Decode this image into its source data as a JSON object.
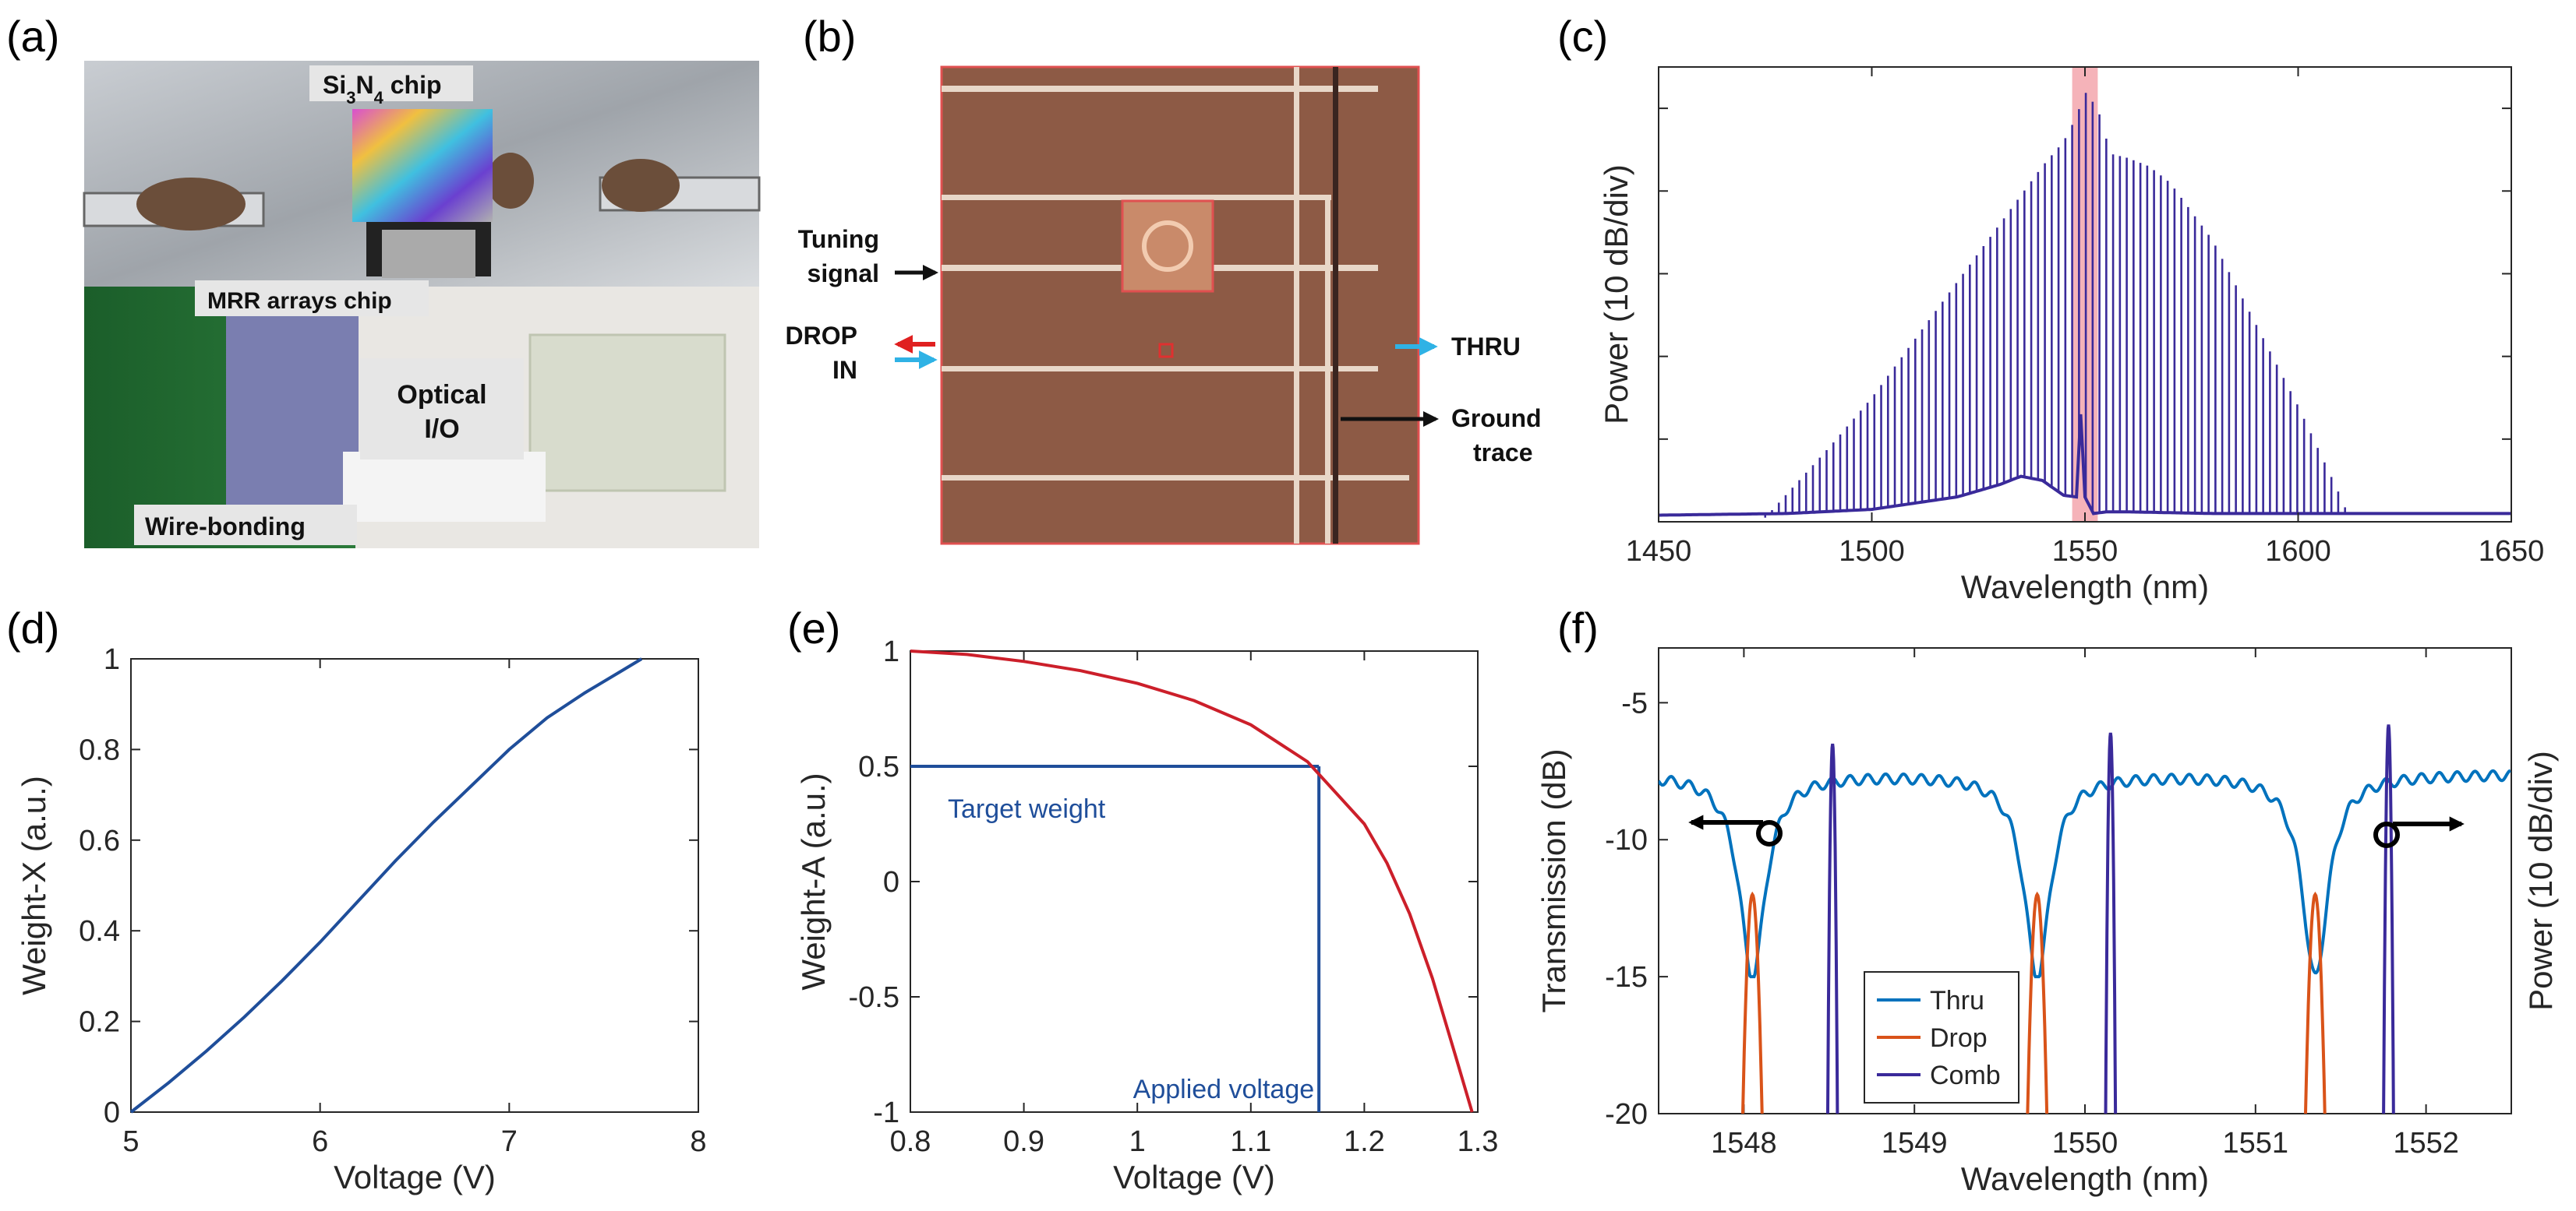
{
  "panels": {
    "a": "(a)",
    "b": "(b)",
    "c": "(c)",
    "d": "(d)",
    "e": "(e)",
    "f": "(f)"
  },
  "photo_a": {
    "label_chip": "Si3N4 chip",
    "label_chip_main": "Si",
    "label_chip_sub1": "3",
    "label_chip_mid": "N",
    "label_chip_sub2": "4",
    "label_chip_end": " chip",
    "label_mrr": "MRR arrays chip",
    "label_optical_line1": "Optical",
    "label_optical_line2": "I/O",
    "label_wire": "Wire-bonding"
  },
  "micro_b": {
    "tuning_line1": "Tuning",
    "tuning_line2": "signal",
    "drop": "DROP",
    "in": "IN",
    "thru": "THRU",
    "ground_line1": "Ground",
    "ground_line2": "trace"
  },
  "colors": {
    "comb_purple": "#3A2A9A",
    "thru_blue": "#0072BD",
    "drop_orange": "#D95319",
    "weight_blue": "#1F4E9A",
    "weight_red": "#CC1F2A",
    "highlight_pink": "#F2A0A8"
  },
  "chart_data": [
    {
      "id": "c",
      "type": "line",
      "title": "",
      "xlabel": "Wavelength (nm)",
      "ylabel": "Power (10 dB/div)",
      "xlim": [
        1450,
        1650
      ],
      "xticks": [
        1450,
        1500,
        1550,
        1600,
        1650
      ],
      "xtick_labels": [
        "1450",
        "1500",
        "1550",
        "1600",
        "1650"
      ],
      "ylim": [
        0,
        5.5
      ],
      "yticks": [
        1,
        2,
        3,
        4,
        5
      ],
      "ytick_labels": [
        "",
        "",
        "",
        "",
        ""
      ],
      "highlight_band": [
        1547,
        1553
      ],
      "comb_lines": {
        "start": 1475,
        "end": 1612,
        "spacing": 1.6
      },
      "envelope": {
        "x": [
          1475,
          1490,
          1500,
          1510,
          1520,
          1530,
          1540,
          1545,
          1548,
          1550,
          1553,
          1556,
          1560,
          1565,
          1570,
          1580,
          1590,
          1600,
          1610,
          1612
        ],
        "y": [
          0.05,
          0.9,
          1.5,
          2.2,
          2.9,
          3.6,
          4.3,
          4.6,
          4.9,
          5.2,
          5.0,
          4.45,
          4.4,
          4.3,
          4.1,
          3.4,
          2.4,
          1.4,
          0.3,
          0.05
        ]
      },
      "baseline": {
        "x": [
          1450,
          1480,
          1500,
          1520,
          1530,
          1535,
          1540,
          1545,
          1548,
          1549,
          1550,
          1551,
          1552,
          1555,
          1560,
          1580,
          1620,
          1650
        ],
        "y": [
          0.08,
          0.1,
          0.15,
          0.3,
          0.45,
          0.55,
          0.5,
          0.32,
          0.3,
          1.3,
          0.3,
          0.2,
          0.1,
          0.12,
          0.12,
          0.1,
          0.1,
          0.1
        ]
      }
    },
    {
      "id": "d",
      "type": "line",
      "title": "",
      "xlabel": "Voltage (V)",
      "ylabel": "Weight-X (a.u.)",
      "xlim": [
        5,
        8
      ],
      "ylim": [
        0,
        1
      ],
      "xticks": [
        5,
        6,
        7,
        8
      ],
      "xtick_labels": [
        "5",
        "6",
        "7",
        "8"
      ],
      "yticks": [
        0,
        0.2,
        0.4,
        0.6,
        0.8,
        1
      ],
      "ytick_labels": [
        "0",
        "0.2",
        "0.4",
        "0.6",
        "0.8",
        "1"
      ],
      "series": [
        {
          "name": "Weight-X",
          "x": [
            5.0,
            5.2,
            5.4,
            5.6,
            5.8,
            6.0,
            6.2,
            6.4,
            6.6,
            6.8,
            7.0,
            7.2,
            7.4,
            7.6,
            7.7
          ],
          "y": [
            0.0,
            0.065,
            0.135,
            0.21,
            0.29,
            0.375,
            0.465,
            0.555,
            0.64,
            0.72,
            0.8,
            0.87,
            0.925,
            0.975,
            1.0
          ]
        }
      ]
    },
    {
      "id": "e",
      "type": "line",
      "title": "",
      "xlabel": "Voltage (V)",
      "ylabel": "Weight-A (a.u.)",
      "xlim": [
        0.8,
        1.3
      ],
      "ylim": [
        -1,
        1
      ],
      "xticks": [
        0.8,
        0.9,
        1.0,
        1.1,
        1.2,
        1.3
      ],
      "xtick_labels": [
        "0.8",
        "0.9",
        "1",
        "1.1",
        "1.2",
        "1.3"
      ],
      "yticks": [
        -1,
        -0.5,
        0,
        0.5,
        1
      ],
      "ytick_labels": [
        "-1",
        "-0.5",
        "0",
        "0.5",
        "1"
      ],
      "series": [
        {
          "name": "Weight-A",
          "x": [
            0.8,
            0.85,
            0.9,
            0.95,
            1.0,
            1.05,
            1.1,
            1.15,
            1.2,
            1.22,
            1.24,
            1.26,
            1.28,
            1.295
          ],
          "y": [
            1.0,
            0.985,
            0.955,
            0.915,
            0.86,
            0.785,
            0.68,
            0.52,
            0.25,
            0.08,
            -0.14,
            -0.42,
            -0.75,
            -1.0
          ]
        }
      ],
      "annotations": {
        "target_weight": {
          "label": "Target weight",
          "value": 0.5
        },
        "applied_voltage": {
          "label": "Applied  voltage",
          "value": 1.16
        }
      }
    },
    {
      "id": "f",
      "type": "line",
      "title": "",
      "xlabel": "Wavelength (nm)",
      "ylabel": "Transmission (dB)",
      "ylabel_right": "Power (10 dB/div)",
      "xlim": [
        1547.5,
        1552.5
      ],
      "ylim": [
        -20,
        -3
      ],
      "xticks": [
        1548,
        1549,
        1550,
        1551,
        1552
      ],
      "xtick_labels": [
        "1548",
        "1549",
        "1550",
        "1551",
        "1552"
      ],
      "yticks": [
        -20,
        -15,
        -10,
        -5
      ],
      "ytick_labels": [
        "-20",
        "-15",
        "-10",
        "-5"
      ],
      "legend": [
        "Thru",
        "Drop",
        "Comb"
      ],
      "legend_position": "bottom-left",
      "resonances": [
        1548.05,
        1549.72,
        1551.35
      ],
      "comb_peaks": [
        {
          "x": 1548.52,
          "y": -6.5
        },
        {
          "x": 1550.15,
          "y": -6.1
        },
        {
          "x": 1551.78,
          "y": -5.8
        }
      ],
      "thru_floor": -15.0,
      "thru_baseline": -7.6,
      "drop_peak": -12.0
    }
  ]
}
